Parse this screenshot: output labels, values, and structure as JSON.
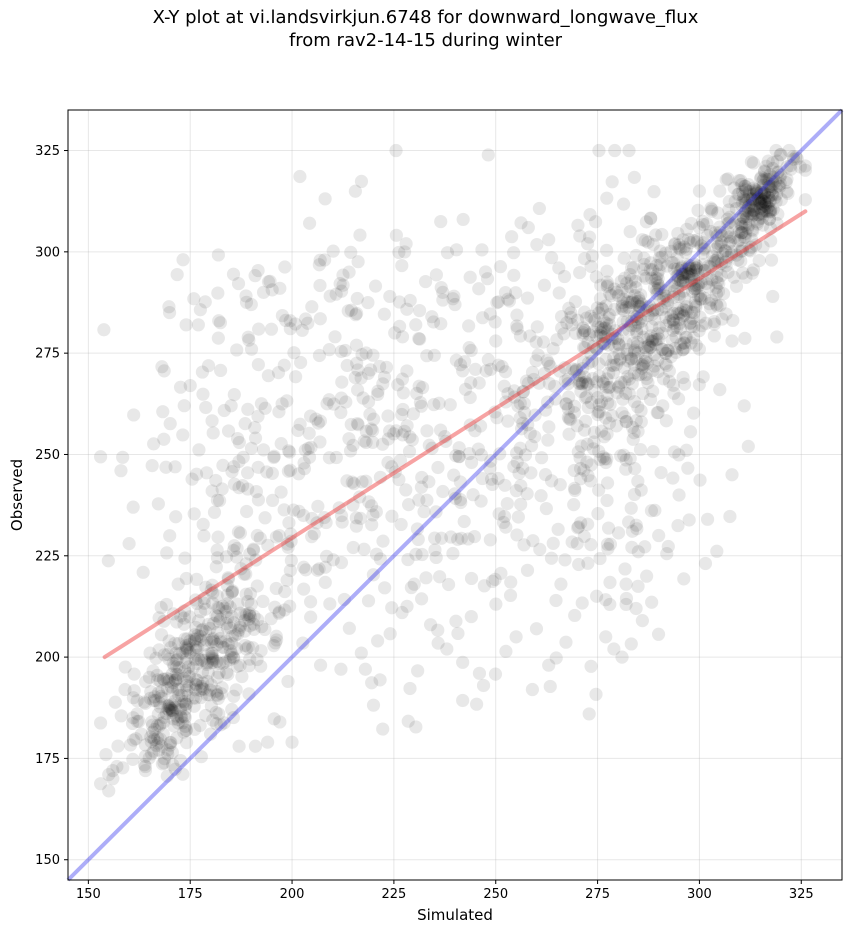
{
  "chart_data": {
    "type": "scatter",
    "title_line1": "X-Y plot at vi.landsvirkjun.6748 for downward_longwave_flux",
    "title_line2": "from rav2-14-15 during winter",
    "xlabel": "Simulated",
    "ylabel": "Observed",
    "xlim": [
      145,
      335
    ],
    "ylim": [
      145,
      335
    ],
    "xticks": [
      150,
      175,
      200,
      225,
      250,
      275,
      300,
      325
    ],
    "yticks": [
      150,
      175,
      200,
      225,
      250,
      275,
      300,
      325
    ],
    "grid": true,
    "point_color": "#000000",
    "point_alpha": 0.09,
    "fit_line": {
      "color": "#ee3333",
      "x": [
        154,
        326
      ],
      "y": [
        200,
        310
      ]
    },
    "one_to_one_line": {
      "color": "#3333ee",
      "x": [
        145,
        335
      ],
      "y": [
        145,
        335
      ]
    },
    "clusters": [
      {
        "cx": 178,
        "cy": 200,
        "sx": 9,
        "sy": 12,
        "rho": 0.6,
        "n": 330
      },
      {
        "cx": 170,
        "cy": 185,
        "sx": 5,
        "sy": 8,
        "rho": 0.5,
        "n": 60
      },
      {
        "cx": 205,
        "cy": 255,
        "sx": 20,
        "sy": 25,
        "rho": 0.15,
        "n": 360
      },
      {
        "cx": 250,
        "cy": 255,
        "sx": 18,
        "sy": 28,
        "rho": 0.3,
        "n": 240
      },
      {
        "cx": 282,
        "cy": 278,
        "sx": 10,
        "sy": 15,
        "rho": 0.4,
        "n": 380
      },
      {
        "cx": 300,
        "cy": 295,
        "sx": 9,
        "sy": 10,
        "rho": 0.7,
        "n": 250
      },
      {
        "cx": 315,
        "cy": 313,
        "sx": 4,
        "sy": 5,
        "rho": 0.6,
        "n": 150
      },
      {
        "cx": 275,
        "cy": 235,
        "sx": 14,
        "sy": 18,
        "rho": 0.2,
        "n": 90
      }
    ],
    "points": [
      [
        155,
        167
      ],
      [
        155,
        171
      ],
      [
        156,
        172
      ],
      [
        157,
        173
      ],
      [
        156,
        170
      ],
      [
        164,
        172
      ],
      [
        164,
        173
      ],
      [
        158,
        246
      ],
      [
        161,
        237
      ],
      [
        160,
        228
      ],
      [
        174,
        282
      ],
      [
        177,
        282
      ],
      [
        175,
        267
      ],
      [
        182,
        283
      ],
      [
        190,
        287
      ],
      [
        193,
        290
      ],
      [
        197,
        291
      ],
      [
        242,
        308
      ],
      [
        258,
        306
      ],
      [
        263,
        303
      ],
      [
        228,
        302
      ],
      [
        237,
        290
      ],
      [
        208,
        298
      ],
      [
        214,
        295
      ],
      [
        224,
        289
      ],
      [
        229,
        288
      ],
      [
        240,
        287
      ],
      [
        286,
        303
      ],
      [
        283,
        305
      ],
      [
        307,
        318
      ],
      [
        315,
        318
      ],
      [
        316,
        320
      ],
      [
        318,
        322
      ],
      [
        320,
        324
      ],
      [
        322,
        325
      ],
      [
        324,
        323
      ],
      [
        320,
        319
      ],
      [
        317,
        316
      ],
      [
        314,
        315
      ],
      [
        311,
        313
      ],
      [
        305,
        315
      ],
      [
        303,
        310
      ],
      [
        307,
        307
      ],
      [
        312,
        310
      ],
      [
        318,
        314
      ],
      [
        298,
        307
      ],
      [
        300,
        306
      ],
      [
        296,
        303
      ],
      [
        294,
        302
      ],
      [
        302,
        304
      ],
      [
        319,
        279
      ],
      [
        312,
        252
      ],
      [
        308,
        245
      ],
      [
        302,
        234
      ],
      [
        318,
        289
      ],
      [
        295,
        240
      ],
      [
        290,
        230
      ],
      [
        285,
        226
      ],
      [
        282,
        218
      ],
      [
        286,
        209
      ],
      [
        282,
        213
      ],
      [
        278,
        213
      ],
      [
        281,
        200
      ],
      [
        279,
        202
      ],
      [
        277,
        205
      ],
      [
        270,
        228
      ],
      [
        267,
        224
      ],
      [
        266,
        218
      ],
      [
        263,
        198
      ],
      [
        260,
        207
      ],
      [
        259,
        192
      ],
      [
        255,
        205
      ],
      [
        247,
        193
      ],
      [
        246,
        196
      ],
      [
        244,
        210
      ],
      [
        238,
        202
      ],
      [
        234,
        208
      ],
      [
        230,
        218
      ],
      [
        227,
        211
      ],
      [
        221,
        204
      ],
      [
        218,
        197
      ],
      [
        212,
        197
      ],
      [
        217,
        201
      ],
      [
        207,
        198
      ],
      [
        199,
        194
      ],
      [
        197,
        184
      ],
      [
        194,
        179
      ],
      [
        200,
        179
      ],
      [
        191,
        178
      ],
      [
        187,
        178
      ],
      [
        185,
        200
      ],
      [
        182,
        186
      ],
      [
        180,
        181
      ],
      [
        171,
        183
      ],
      [
        168,
        178
      ],
      [
        166,
        180
      ],
      [
        162,
        186
      ],
      [
        163,
        181
      ],
      [
        159,
        192
      ],
      [
        165,
        195
      ],
      [
        245,
        271
      ],
      [
        250,
        278
      ],
      [
        253,
        265
      ],
      [
        256,
        259
      ],
      [
        262,
        270
      ],
      [
        268,
        255
      ],
      [
        272,
        264
      ],
      [
        277,
        259
      ],
      [
        283,
        249
      ],
      [
        291,
        262
      ],
      [
        296,
        269
      ],
      [
        300,
        276
      ],
      [
        305,
        266
      ],
      [
        308,
        278
      ],
      [
        311,
        262
      ]
    ]
  }
}
